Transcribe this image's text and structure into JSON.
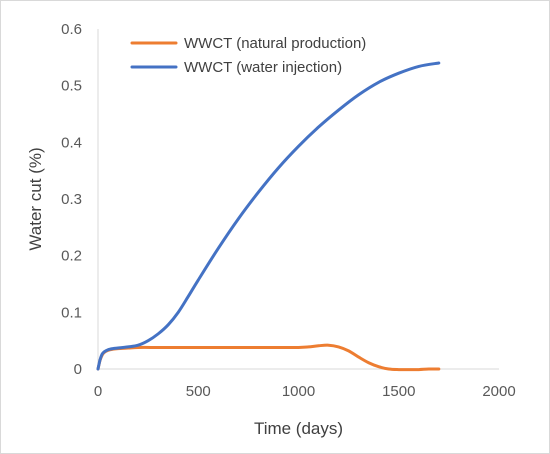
{
  "chart_data": {
    "type": "line",
    "title": "",
    "xlabel": "Time (days)",
    "ylabel": "Water cut (%)",
    "xlim": [
      0,
      2000
    ],
    "ylim": [
      0,
      0.6
    ],
    "x_ticks": [
      "0",
      "500",
      "1000",
      "1500",
      "2000"
    ],
    "y_ticks": [
      "0",
      "0.1",
      "0.2",
      "0.3",
      "0.4",
      "0.5",
      "0.6"
    ],
    "grid": false,
    "legend_position": "top-left",
    "series": [
      {
        "name": "WWCT (natural production)",
        "color": "#ED7D31",
        "x": [
          0,
          10,
          20,
          30,
          50,
          75,
          100,
          150,
          200,
          300,
          400,
          500,
          600,
          700,
          800,
          900,
          1000,
          1050,
          1100,
          1150,
          1200,
          1250,
          1300,
          1350,
          1400,
          1450,
          1500,
          1550,
          1600,
          1650,
          1700
        ],
        "y": [
          0,
          0.015,
          0.024,
          0.029,
          0.033,
          0.035,
          0.036,
          0.037,
          0.038,
          0.038,
          0.038,
          0.038,
          0.038,
          0.038,
          0.038,
          0.038,
          0.038,
          0.039,
          0.041,
          0.042,
          0.039,
          0.032,
          0.021,
          0.011,
          0.004,
          0.0,
          -0.001,
          -0.001,
          -0.001,
          0.0,
          0.0
        ]
      },
      {
        "name": "WWCT (water injection)",
        "color": "#4472C4",
        "x": [
          0,
          10,
          20,
          30,
          50,
          75,
          100,
          150,
          200,
          250,
          300,
          350,
          400,
          450,
          500,
          600,
          700,
          800,
          900,
          1000,
          1100,
          1200,
          1300,
          1400,
          1500,
          1600,
          1700
        ],
        "y": [
          0,
          0.016,
          0.026,
          0.03,
          0.034,
          0.036,
          0.037,
          0.039,
          0.042,
          0.05,
          0.062,
          0.078,
          0.1,
          0.128,
          0.157,
          0.213,
          0.265,
          0.312,
          0.355,
          0.393,
          0.427,
          0.457,
          0.484,
          0.506,
          0.522,
          0.534,
          0.54
        ]
      }
    ]
  }
}
